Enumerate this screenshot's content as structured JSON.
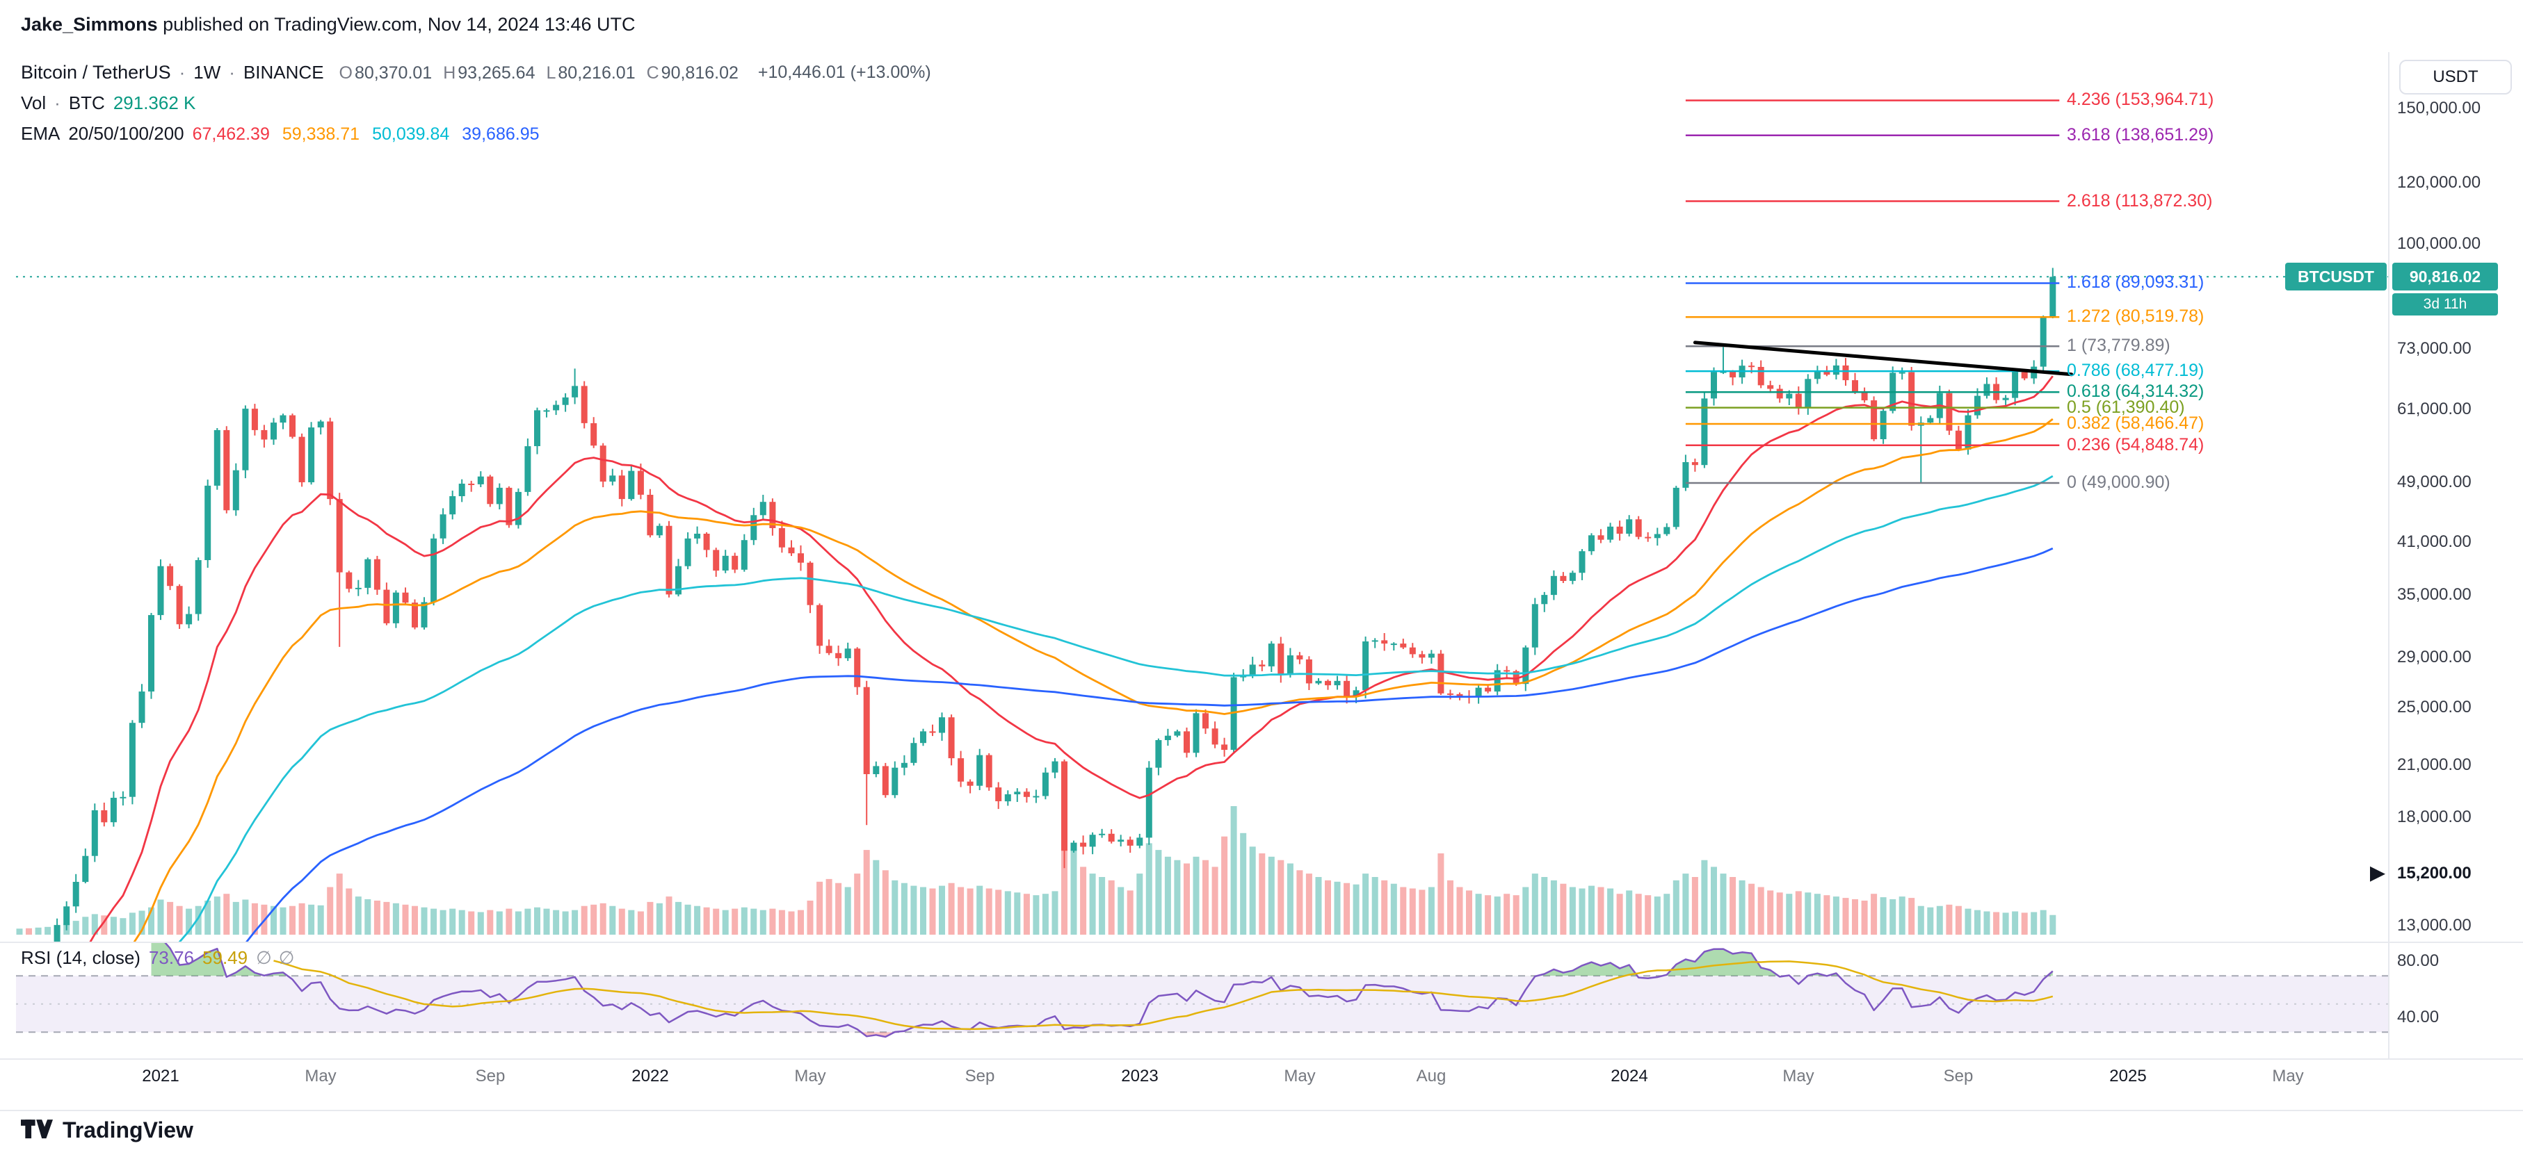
{
  "header": {
    "author": "Jake_Simmons",
    "rest": " published on TradingView.com, Nov 14, 2024 13:46 UTC"
  },
  "legend": {
    "symbol": "Bitcoin / TetherUS",
    "sep": "·",
    "interval": "1W",
    "exchange": "BINANCE",
    "ohlc": [
      {
        "label": "O",
        "value": "80,370.01"
      },
      {
        "label": "H",
        "value": "93,265.64"
      },
      {
        "label": "L",
        "value": "80,216.01"
      },
      {
        "label": "C",
        "value": "90,816.02"
      }
    ],
    "change": "+10,446.01 (+13.00%)",
    "vol_label": "Vol",
    "vol_currency": "BTC",
    "vol_value": "291.362 K",
    "vol_color": "#089981",
    "ema_label": "EMA",
    "ema_periods": "20/50/100/200",
    "ema_values": [
      {
        "value": "67,462.39",
        "color": "#f23645"
      },
      {
        "value": "59,338.71",
        "color": "#ff9800"
      },
      {
        "value": "50,039.84",
        "color": "#00bcd4"
      },
      {
        "value": "39,686.95",
        "color": "#2962ff"
      }
    ]
  },
  "rsi_legend": {
    "label": "RSI (14, close)",
    "value": "73.76",
    "value_color": "#7e57c2",
    "ma_value": "59.49",
    "ma_color": "#c7a008",
    "icons": [
      "∅",
      "∅"
    ]
  },
  "axis": {
    "currency_button": "USDT",
    "price_badge": {
      "symbol": "BTCUSDT",
      "price": "90,816.02",
      "price_value": 90816.02,
      "countdown": "3d 11h",
      "color": "#26a69a"
    }
  },
  "footer": {
    "logo_text": "TradingView"
  },
  "chart_data": {
    "type": "candlestick",
    "symbol": "Bitcoin / TetherUS",
    "exchange": "BINANCE",
    "interval": "1W",
    "y_axis": {
      "type": "log",
      "currency": "USDT"
    },
    "y_ticks": [
      {
        "text": "150,000.00",
        "price": 150000
      },
      {
        "text": "120,000.00",
        "price": 120000
      },
      {
        "text": "100,000.00",
        "price": 100000
      },
      {
        "text": "73,000.00",
        "price": 73000
      },
      {
        "text": "61,000.00",
        "price": 61000
      },
      {
        "text": "49,000.00",
        "price": 49000
      },
      {
        "text": "41,000.00",
        "price": 41000
      },
      {
        "text": "35,000.00",
        "price": 35000
      },
      {
        "text": "29,000.00",
        "price": 29000
      },
      {
        "text": "25,000.00",
        "price": 25000
      },
      {
        "text": "21,000.00",
        "price": 21000
      },
      {
        "text": "18,000.00",
        "price": 18000
      },
      {
        "text": "15,200.00",
        "price": 15200,
        "marker": true
      },
      {
        "text": "13,000.00",
        "price": 13000
      }
    ],
    "rsi_ticks": [
      {
        "text": "80.00",
        "value": 80
      },
      {
        "text": "40.00",
        "value": 40
      }
    ],
    "time_ticks": [
      {
        "text": "2021",
        "week": 15,
        "major": true
      },
      {
        "text": "May",
        "week": 32
      },
      {
        "text": "Sep",
        "week": 50
      },
      {
        "text": "2022",
        "week": 67,
        "major": true
      },
      {
        "text": "May",
        "week": 84
      },
      {
        "text": "Sep",
        "week": 102
      },
      {
        "text": "2023",
        "week": 119,
        "major": true
      },
      {
        "text": "May",
        "week": 136
      },
      {
        "text": "Aug",
        "week": 150
      },
      {
        "text": "2024",
        "week": 171,
        "major": true
      },
      {
        "text": "May",
        "week": 189
      },
      {
        "text": "Sep",
        "week": 206
      },
      {
        "text": "2025",
        "week": 224,
        "major": true
      },
      {
        "text": "May",
        "week": 241
      }
    ],
    "first_open": 10150,
    "closes": [
      10700,
      10550,
      11300,
      11500,
      13050,
      13800,
      14850,
      16050,
      18400,
      17750,
      19100,
      19150,
      23900,
      26250,
      33000,
      38200,
      36000,
      32100,
      33100,
      38900,
      48600,
      57400,
      45150,
      50900,
      61200,
      57400,
      55800,
      58700,
      60000,
      56250,
      49100,
      57850,
      58900,
      46700,
      37500,
      35700,
      35800,
      39000,
      35600,
      32200,
      35300,
      34250,
      31800,
      34300,
      41500,
      44600,
      47100,
      48900,
      48800,
      49950,
      46000,
      48300,
      43200,
      47700,
      54700,
      60900,
      60900,
      61900,
      63300,
      65500,
      58600,
      54800,
      49200,
      50100,
      46700,
      50800,
      47300,
      41900,
      43100,
      35100,
      38200,
      41500,
      42100,
      40100,
      37700,
      39400,
      37800,
      41300,
      44500,
      46300,
      42800,
      40400,
      39700,
      38600,
      34000,
      30100,
      29450,
      29000,
      29850,
      26600,
      20500,
      21000,
      19250,
      20900,
      21200,
      22500,
      23300,
      23200,
      24300,
      21500,
      20050,
      19800,
      21700,
      19700,
      18900,
      19300,
      19450,
      19150,
      19200,
      20600,
      21300,
      16300,
      16700,
      16500,
      17100,
      17150,
      16750,
      16850,
      16550,
      16950,
      20900,
      22700,
      23000,
      23300,
      21850,
      24600,
      23500,
      22400,
      22050,
      27400,
      27500,
      28450,
      28300,
      30300,
      27600,
      29250,
      28900,
      26900,
      27100,
      26750,
      27100,
      25900,
      26350,
      30500,
      30600,
      30300,
      30300,
      29950,
      29350,
      29050,
      29400,
      26100,
      26050,
      25900,
      25850,
      26550,
      26250,
      27980,
      27900,
      26850,
      29950,
      34100,
      35050,
      37100,
      36550,
      37450,
      39950,
      41900,
      41350,
      43000,
      42100,
      43950,
      41700,
      41550,
      42050,
      42950,
      48300,
      52150,
      51700,
      63100,
      68300,
      68400,
      67200,
      69600,
      69350,
      65650,
      64950,
      63100,
      64000,
      61450,
      66900,
      68500,
      67750,
      69650,
      66650,
      64250,
      62750,
      55850,
      60800,
      68150,
      68250,
      58150,
      58700,
      59500,
      64100,
      57300,
      54150,
      60000,
      63600,
      65900,
      62800,
      63200,
      68400,
      67000,
      69400,
      80400,
      90816.02
    ],
    "volumes_k_btc": [
      90,
      95,
      105,
      115,
      145,
      165,
      205,
      265,
      305,
      285,
      265,
      245,
      325,
      355,
      405,
      520,
      485,
      425,
      385,
      425,
      505,
      565,
      605,
      485,
      520,
      465,
      445,
      425,
      405,
      425,
      465,
      445,
      435,
      705,
      905,
      685,
      565,
      525,
      505,
      485,
      465,
      445,
      425,
      405,
      385,
      365,
      385,
      365,
      345,
      335,
      365,
      345,
      385,
      345,
      385,
      405,
      385,
      365,
      345,
      365,
      425,
      445,
      465,
      425,
      385,
      365,
      345,
      485,
      465,
      565,
      485,
      445,
      425,
      405,
      385,
      365,
      385,
      405,
      385,
      365,
      385,
      365,
      345,
      365,
      505,
      785,
      825,
      765,
      705,
      905,
      1255,
      1105,
      955,
      805,
      765,
      725,
      705,
      685,
      725,
      765,
      705,
      685,
      725,
      685,
      665,
      645,
      625,
      605,
      585,
      605,
      645,
      1605,
      1255,
      1005,
      905,
      855,
      805,
      705,
      655,
      905,
      1355,
      1255,
      1155,
      1105,
      1055,
      1155,
      1105,
      1005,
      1455,
      1905,
      1505,
      1305,
      1205,
      1155,
      1105,
      1055,
      955,
      905,
      855,
      805,
      785,
      765,
      745,
      905,
      855,
      805,
      755,
      705,
      685,
      665,
      705,
      1205,
      805,
      705,
      655,
      605,
      585,
      565,
      605,
      585,
      705,
      905,
      855,
      805,
      755,
      705,
      685,
      725,
      705,
      685,
      605,
      655,
      605,
      585,
      565,
      605,
      805,
      905,
      855,
      1105,
      1005,
      905,
      855,
      805,
      755,
      705,
      655,
      625,
      605,
      645,
      625,
      605,
      585,
      565,
      545,
      525,
      505,
      605,
      555,
      525,
      565,
      545,
      425,
      405,
      425,
      445,
      425,
      385,
      365,
      345,
      335,
      325,
      345,
      325,
      335,
      365,
      291.362
    ],
    "low_overrides": {
      "34": 30000,
      "90": 17600,
      "111": 15476,
      "202": 49001
    },
    "high_overrides": {
      "24": 61800,
      "59": 69000,
      "181": 73780
    },
    "last_candle": {
      "open": 80370.01,
      "high": 93265.64,
      "low": 80216.01,
      "close": 90816.02
    },
    "emas": [
      {
        "period": 20,
        "color": "#f23645"
      },
      {
        "period": 50,
        "color": "#ff9800"
      },
      {
        "period": 100,
        "color": "#22c3d6"
      },
      {
        "period": 200,
        "color": "#2962ff"
      }
    ],
    "rsi": {
      "period": 14,
      "ma_period": 14,
      "current": 73.76,
      "ma_current": 59.49
    },
    "fib": {
      "start_week": 177,
      "end_week": 216.7,
      "levels": [
        {
          "label": "4.236 (153,964.71)",
          "price": 153964.71,
          "color": "#f23645"
        },
        {
          "label": "3.618 (138,651.29)",
          "price": 138651.29,
          "color": "#9c27b0"
        },
        {
          "label": "2.618 (113,872.30)",
          "price": 113872.3,
          "color": "#f23645"
        },
        {
          "label": "1.618 (89,093.31)",
          "price": 89093.31,
          "color": "#2962ff"
        },
        {
          "label": "1.272 (80,519.78)",
          "price": 80519.78,
          "color": "#ff9800"
        },
        {
          "label": "1 (73,779.89)",
          "price": 73779.89,
          "color": "#787b86"
        },
        {
          "label": "0.786 (68,477.19)",
          "price": 68477.19,
          "color": "#00bcd4"
        },
        {
          "label": "0.618 (64,314.32)",
          "price": 64314.32,
          "color": "#089981"
        },
        {
          "label": "0.5 (61,390.40)",
          "price": 61390.4,
          "color": "#7ca021"
        },
        {
          "label": "0.382 (58,466.47)",
          "price": 58466.47,
          "color": "#ff9800"
        },
        {
          "label": "0.236 (54,848.74)",
          "price": 54848.74,
          "color": "#f23645"
        },
        {
          "label": "0 (49,000.90)",
          "price": 49000.9,
          "color": "#787b86"
        }
      ]
    },
    "overlays": {
      "trendline": {
        "w1": 178,
        "p1": 74600,
        "w2": 218,
        "p2": 67800,
        "color": "#000000",
        "width": 5
      },
      "last_price_line": {
        "price": 90816.02,
        "color": "#26a69a"
      }
    },
    "colors": {
      "up": "#26a69a",
      "down": "#ef5350",
      "vol_up": "rgba(38,166,154,0.45)",
      "vol_down": "rgba(239,83,80,0.45)",
      "rsi": "#7e57c2",
      "rsi_ma": "#e3b30b",
      "rsi_band": "rgba(126,87,194,0.10)",
      "rsi_band_line": "#a5a8b4",
      "rsi_over_fill": "rgba(76,175,80,0.45)",
      "rsi_under_fill": "rgba(239,83,80,0.35)"
    }
  }
}
